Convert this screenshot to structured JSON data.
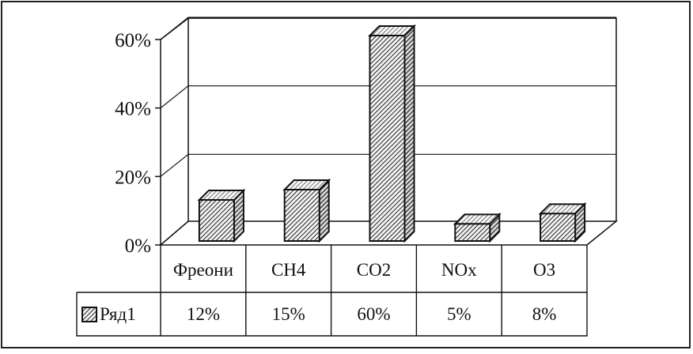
{
  "chart_data": {
    "type": "bar",
    "categories": [
      "Фреони",
      "CH4",
      "CO2",
      "NOx",
      "O3"
    ],
    "series": [
      {
        "name": "Ряд1",
        "values": [
          12,
          15,
          60,
          5,
          8
        ],
        "labels": [
          "12%",
          "15%",
          "60%",
          "5%",
          "8%"
        ]
      }
    ],
    "y_ticks": [
      "0%",
      "20%",
      "40%",
      "60%"
    ],
    "ylim": [
      0,
      60
    ],
    "grid": true,
    "three_d": true,
    "data_table": true,
    "legend_in_table": true,
    "bar_fill": "diagonal-hatch"
  }
}
